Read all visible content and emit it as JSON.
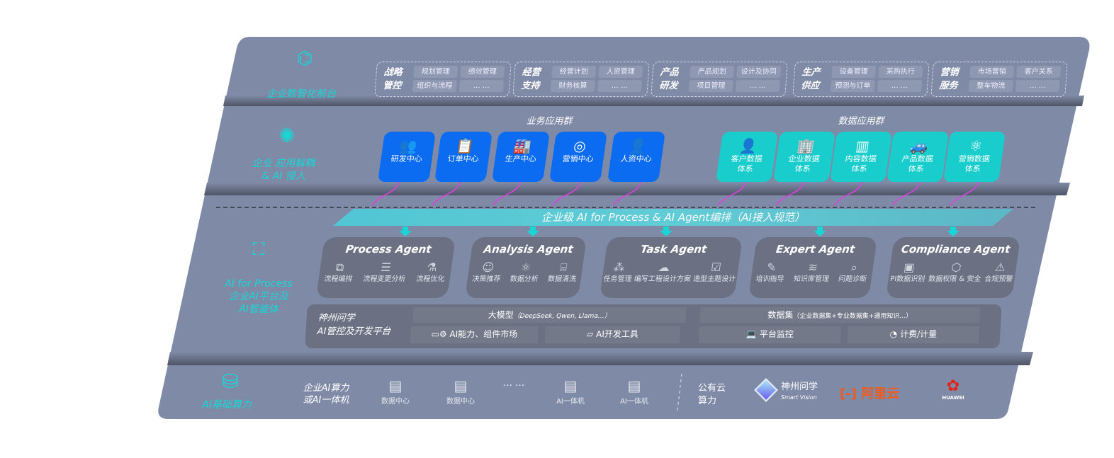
{
  "colors": {
    "panel": "#7f8aa6",
    "band": "#5d6476",
    "agent": "#6b7182",
    "accent": "#19d6d6",
    "blue": "#0b6cf2",
    "teal": "#19cdcd",
    "arrow": "#e23ee6"
  },
  "front": {
    "label": "企业数智化前台",
    "icon": "brain-icon",
    "groups": [
      {
        "title": "战略管控",
        "items": [
          "规划管理",
          "绩效管理",
          "组织与流程",
          "… …"
        ]
      },
      {
        "title": "经营支持",
        "items": [
          "经营计划",
          "人资管理",
          "财务核算",
          "… …"
        ]
      },
      {
        "title": "产品研发",
        "items": [
          "产品规划",
          "设计及协同",
          "项目管理",
          "… …"
        ]
      },
      {
        "title": "生产供应",
        "items": [
          "设备管理",
          "采购执行",
          "预测与订单",
          "… …"
        ]
      },
      {
        "title": "营销服务",
        "items": [
          "市场营销",
          "客户关系",
          "整车物流",
          "… …"
        ]
      }
    ]
  },
  "apps": {
    "label1": "企业 应用解耦",
    "label2": "& AI 侵入",
    "icon": "molecule-icon",
    "business_title": "业务应用群",
    "business": [
      {
        "label": "研发中心",
        "icon": "users-icon"
      },
      {
        "label": "订单中心",
        "icon": "clipboard-icon"
      },
      {
        "label": "生产中心",
        "icon": "factory-icon"
      },
      {
        "label": "营销中心",
        "icon": "target-icon"
      },
      {
        "label": "人资中心",
        "icon": "person-icon"
      }
    ],
    "data_title": "数据应用群",
    "data": [
      {
        "l1": "客户数据",
        "l2": "体系",
        "icon": "person-icon"
      },
      {
        "l1": "企业数据",
        "l2": "体系",
        "icon": "building-icon"
      },
      {
        "l1": "内容数据",
        "l2": "体系",
        "icon": "books-icon"
      },
      {
        "l1": "产品数据",
        "l2": "体系",
        "icon": "car-icon"
      },
      {
        "l1": "营销数据",
        "l2": "体系",
        "icon": "atom-icon"
      }
    ]
  },
  "banner": "企业级 AI for Process & AI Agent编排（AI接入规范）",
  "ai": {
    "label1": "AI for Process",
    "label2": "企业AI平台及",
    "label3": "AI智能体",
    "icon": "face-scan-icon",
    "agents": [
      {
        "title": "Process Agent",
        "items": [
          {
            "label": "流程编排",
            "icon": "chart-window-icon"
          },
          {
            "label": "流程变更分析",
            "icon": "list-icon"
          },
          {
            "label": "流程优化",
            "icon": "optimize-icon"
          }
        ]
      },
      {
        "title": "Analysis Agent",
        "items": [
          {
            "label": "决策推荐",
            "icon": "head-icon"
          },
          {
            "label": "数据分析",
            "icon": "atom-icon"
          },
          {
            "label": "数据清洗",
            "icon": "data-clean-icon"
          }
        ]
      },
      {
        "title": "Task Agent",
        "items": [
          {
            "label": "任务管理",
            "icon": "network-icon"
          },
          {
            "label": "编写工程设计方案",
            "icon": "cloud-icon"
          },
          {
            "label": "造型主题设计",
            "icon": "checklist-icon"
          }
        ]
      },
      {
        "title": "Expert Agent",
        "items": [
          {
            "label": "培训指导",
            "icon": "wand-icon"
          },
          {
            "label": "知识库管理",
            "icon": "layers-icon"
          },
          {
            "label": "问题诊断",
            "icon": "diagnose-icon"
          }
        ]
      },
      {
        "title": "Compliance Agent",
        "items": [
          {
            "label": "PI数据识别",
            "icon": "id-card-icon"
          },
          {
            "label": "数据权限 & 安全",
            "icon": "shield-icon"
          },
          {
            "label": "合规预警",
            "icon": "alert-icon"
          }
        ]
      }
    ],
    "platform": {
      "l1": "神州问学",
      "l2": "AI管控及开发平台",
      "model": "大模型",
      "model_note": "（DeepSeek, Qwen, Llama…）",
      "dataset": "数据集",
      "dataset_note": "（企业数据集+专业数据集+通用知识…）",
      "market": "AI能力、组件市场",
      "devtools": "AI开发工具",
      "monitor": "平台监控",
      "billing": "计费/计量"
    }
  },
  "infra": {
    "label": "AI基础算力",
    "icon": "database-icon",
    "private1": "企业AI算力",
    "private2": "或AI一体机",
    "servers": [
      "数据中心",
      "数据中心",
      "AI一体机",
      "AI一体机"
    ],
    "ellipsis": "… …",
    "public1": "公有云",
    "public2": "算力",
    "vendors": {
      "smart_cn": "神州问学",
      "smart_en": "Smart Vision",
      "aliyun": "阿里云",
      "huawei": "HUAWEI"
    }
  }
}
